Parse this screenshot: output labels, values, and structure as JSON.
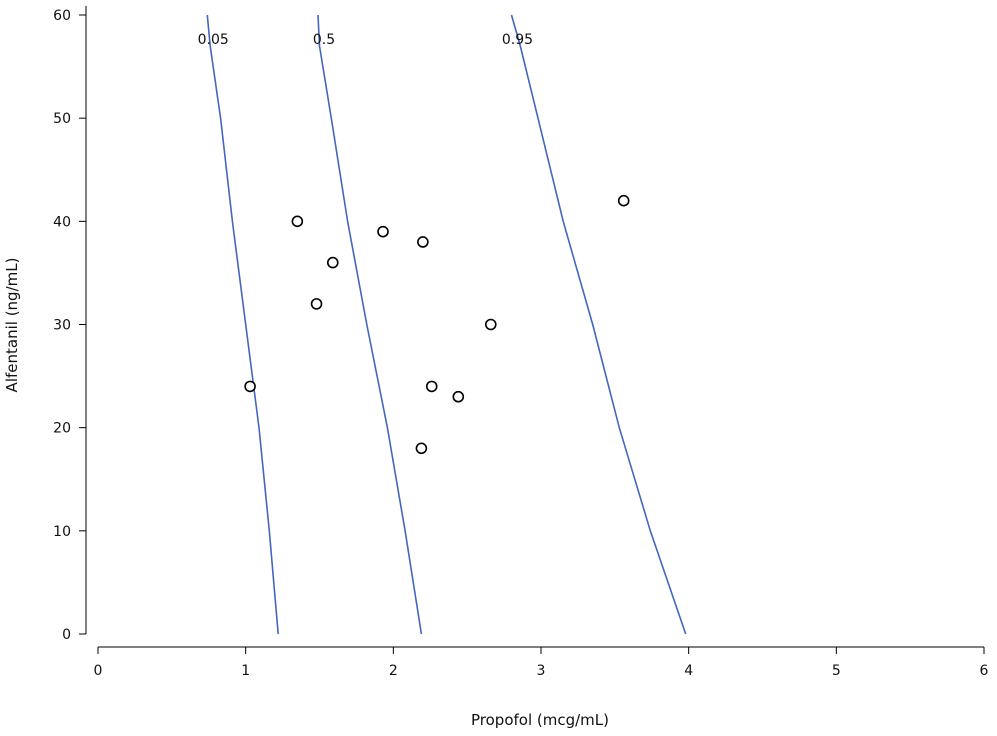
{
  "chart_data": {
    "type": "line",
    "title": "",
    "xlabel": "Propofol (mcg/mL)",
    "ylabel": "Alfentanil (ng/mL)",
    "xlim": [
      0,
      6
    ],
    "ylim": [
      0,
      60
    ],
    "x_ticks": [
      "0",
      "1",
      "2",
      "3",
      "4",
      "5",
      "6"
    ],
    "y_ticks": [
      "0",
      "10",
      "20",
      "30",
      "40",
      "50",
      "60"
    ],
    "grid": false,
    "line_color": "#4466bb",
    "series": [
      {
        "name": "0.05",
        "points": [
          [
            1.22,
            0
          ],
          [
            1.16,
            10
          ],
          [
            1.09,
            20
          ],
          [
            1.0,
            30
          ],
          [
            0.91,
            40
          ],
          [
            0.83,
            50
          ],
          [
            0.76,
            57
          ],
          [
            0.74,
            60
          ]
        ]
      },
      {
        "name": "0.5",
        "points": [
          [
            2.19,
            0
          ],
          [
            2.08,
            10
          ],
          [
            1.96,
            20
          ],
          [
            1.82,
            30
          ],
          [
            1.69,
            40
          ],
          [
            1.58,
            50
          ],
          [
            1.5,
            57
          ],
          [
            1.49,
            60
          ]
        ]
      },
      {
        "name": "0.95",
        "points": [
          [
            3.98,
            0
          ],
          [
            3.74,
            10
          ],
          [
            3.53,
            20
          ],
          [
            3.35,
            30
          ],
          [
            3.15,
            40
          ],
          [
            2.98,
            50
          ],
          [
            2.86,
            57
          ],
          [
            2.8,
            60
          ]
        ]
      }
    ],
    "scatter": {
      "points": [
        [
          1.03,
          24
        ],
        [
          1.35,
          40
        ],
        [
          1.48,
          32
        ],
        [
          1.59,
          36
        ],
        [
          1.93,
          39
        ],
        [
          2.2,
          38
        ],
        [
          2.19,
          18
        ],
        [
          2.26,
          24
        ],
        [
          2.44,
          23
        ],
        [
          2.66,
          30
        ],
        [
          3.56,
          42
        ]
      ]
    }
  }
}
